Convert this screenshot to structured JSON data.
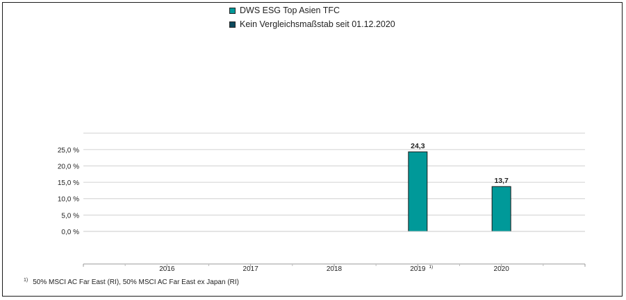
{
  "chart_data": {
    "type": "bar",
    "categories": [
      "2016",
      "2017",
      "2018",
      "2019",
      "2020"
    ],
    "category_markers": [
      "",
      "",
      "",
      "1)",
      ""
    ],
    "series": [
      {
        "name": "DWS ESG Top Asien  TFC",
        "values": [
          null,
          null,
          null,
          24.3,
          13.7
        ],
        "labels": [
          "",
          "",
          "",
          "24,3",
          "13,7"
        ],
        "color": "#009999"
      },
      {
        "name": "Kein Vergleichsmaßstab seit 01.12.2020",
        "values": [
          null,
          null,
          null,
          null,
          null
        ],
        "color": "#0d4a5e"
      }
    ],
    "yticks": [
      "0,0 %",
      "5,0 %",
      "10,0 %",
      "15,0 %",
      "20,0 %",
      "25,0 %"
    ],
    "ytick_values": [
      0,
      5,
      10,
      15,
      20,
      25
    ],
    "ylim": [
      0,
      30
    ],
    "grid": true,
    "legend_position": "top",
    "title": "",
    "xlabel": "",
    "ylabel": ""
  },
  "footnote": {
    "marker": "1)",
    "text": "50% MSCI AC Far East (RI), 50% MSCI AC Far East ex Japan (RI)"
  }
}
